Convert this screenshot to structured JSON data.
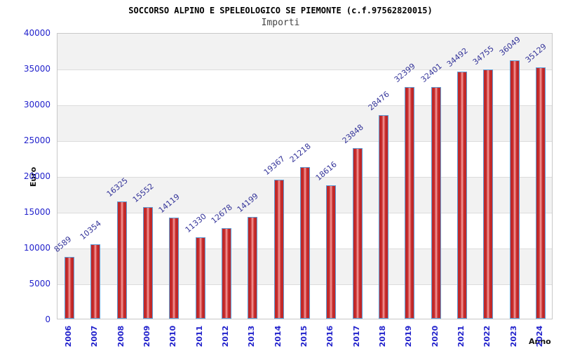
{
  "chart_data": {
    "type": "bar",
    "title": "SOCCORSO ALPINO E SPELEOLOGICO SE PIEMONTE (c.f.97562820015)",
    "subtitle": "Importi",
    "xlabel": "Anno",
    "ylabel": "Euro",
    "categories": [
      "2006",
      "2007",
      "2008",
      "2009",
      "2010",
      "2011",
      "2012",
      "2013",
      "2014",
      "2015",
      "2016",
      "2017",
      "2018",
      "2019",
      "2020",
      "2021",
      "2022",
      "2023",
      "2024"
    ],
    "values": [
      8589,
      10354,
      16325,
      15552,
      14119,
      11330,
      12678,
      14199,
      19367,
      21218,
      18616,
      23848,
      28476,
      32399,
      32401,
      34492,
      34755,
      36049,
      35129
    ],
    "ylim": [
      0,
      40000
    ],
    "y_ticks": [
      0,
      5000,
      10000,
      15000,
      20000,
      25000,
      30000,
      35000,
      40000
    ],
    "grid": "horizontal gridlines with alternating gray/white bands every 5000",
    "legend": "none",
    "value_label_rotation_deg": -40,
    "x_tick_rotation_deg": -90,
    "colors": {
      "tick_label": "#2222cc",
      "value_label": "#333399",
      "bar_edge": "#5b9bd5",
      "bar_dark": "#bb2222",
      "bar_mid": "#cc3333",
      "bar_light": "#f5a2a2",
      "band_gray": "#f2f2f2",
      "band_white": "#ffffff",
      "gridline": "#dcdcdc",
      "plot_border": "#c8c8c8",
      "title_color": "#000000",
      "subtitle_color": "#444444"
    }
  }
}
